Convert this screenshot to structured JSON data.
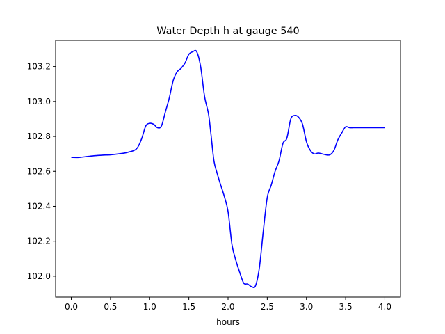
{
  "chart_data": {
    "type": "line",
    "title": "Water Depth h at gauge 540",
    "xlabel": "hours",
    "ylabel": "",
    "xlim": [
      -0.2,
      4.2
    ],
    "ylim": [
      101.88,
      103.35
    ],
    "xticks": [
      0.0,
      0.5,
      1.0,
      1.5,
      2.0,
      2.5,
      3.0,
      3.5,
      4.0
    ],
    "xtick_labels": [
      "0.0",
      "0.5",
      "1.0",
      "1.5",
      "2.0",
      "2.5",
      "3.0",
      "3.5",
      "4.0"
    ],
    "yticks": [
      102.0,
      102.2,
      102.4,
      102.6,
      102.8,
      103.0,
      103.2
    ],
    "ytick_labels": [
      "102.0",
      "102.2",
      "102.4",
      "102.6",
      "102.8",
      "103.0",
      "103.2"
    ],
    "grid": false,
    "series": [
      {
        "color": "#0000ff",
        "x": [
          0.0,
          0.1,
          0.2,
          0.3,
          0.4,
          0.5,
          0.6,
          0.7,
          0.8,
          0.85,
          0.9,
          0.95,
          1.0,
          1.05,
          1.1,
          1.15,
          1.2,
          1.25,
          1.3,
          1.35,
          1.4,
          1.45,
          1.5,
          1.55,
          1.6,
          1.65,
          1.7,
          1.75,
          1.78,
          1.82,
          1.86,
          1.9,
          1.95,
          2.0,
          2.05,
          2.1,
          2.15,
          2.2,
          2.25,
          2.3,
          2.35,
          2.4,
          2.45,
          2.5,
          2.55,
          2.6,
          2.65,
          2.7,
          2.75,
          2.8,
          2.85,
          2.9,
          2.95,
          3.0,
          3.05,
          3.1,
          3.15,
          3.2,
          3.25,
          3.3,
          3.35,
          3.4,
          3.45,
          3.5,
          3.55,
          3.6,
          3.65,
          3.7,
          3.75,
          3.8,
          3.85,
          3.9,
          3.95,
          4.0
        ],
        "y": [
          102.68,
          102.68,
          102.685,
          102.69,
          102.693,
          102.695,
          102.7,
          102.707,
          102.72,
          102.74,
          102.79,
          102.86,
          102.875,
          102.87,
          102.85,
          102.86,
          102.94,
          103.02,
          103.12,
          103.17,
          103.19,
          103.22,
          103.27,
          103.285,
          103.285,
          103.2,
          103.03,
          102.93,
          102.82,
          102.66,
          102.59,
          102.53,
          102.46,
          102.37,
          102.18,
          102.09,
          102.02,
          101.96,
          101.955,
          101.94,
          101.945,
          102.05,
          102.26,
          102.45,
          102.52,
          102.6,
          102.66,
          102.76,
          102.79,
          102.9,
          102.92,
          102.91,
          102.87,
          102.77,
          102.72,
          102.7,
          102.705,
          102.7,
          102.695,
          102.695,
          102.72,
          102.78,
          102.82,
          102.855,
          102.85,
          102.85,
          102.85,
          102.85,
          102.85,
          102.85,
          102.85,
          102.85,
          102.85,
          102.85
        ]
      }
    ]
  }
}
